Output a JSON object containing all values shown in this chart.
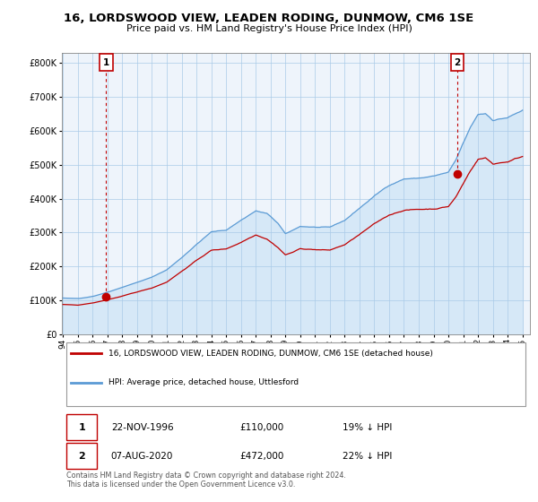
{
  "title": "16, LORDSWOOD VIEW, LEADEN RODING, DUNMOW, CM6 1SE",
  "subtitle": "Price paid vs. HM Land Registry's House Price Index (HPI)",
  "xlim_start": 1994.0,
  "xlim_end": 2025.5,
  "ylim_min": 0,
  "ylim_max": 830000,
  "yticks": [
    0,
    100000,
    200000,
    300000,
    400000,
    500000,
    600000,
    700000,
    800000
  ],
  "ytick_labels": [
    "£0",
    "£100K",
    "£200K",
    "£300K",
    "£400K",
    "£500K",
    "£600K",
    "£700K",
    "£800K"
  ],
  "hpi_color": "#5B9BD5",
  "hpi_fill_color": "#D6E8F7",
  "price_color": "#C00000",
  "bg_color": "#EEF4FB",
  "grid_color": "#AACBE8",
  "sale1_x": 1996.9,
  "sale1_y": 110000,
  "sale1_label": "1",
  "sale2_x": 2020.6,
  "sale2_y": 472000,
  "sale2_label": "2",
  "legend_line1": "16, LORDSWOOD VIEW, LEADEN RODING, DUNMOW, CM6 1SE (detached house)",
  "legend_line2": "HPI: Average price, detached house, Uttlesford",
  "footnote": "Contains HM Land Registry data © Crown copyright and database right 2024.\nThis data is licensed under the Open Government Licence v3.0."
}
